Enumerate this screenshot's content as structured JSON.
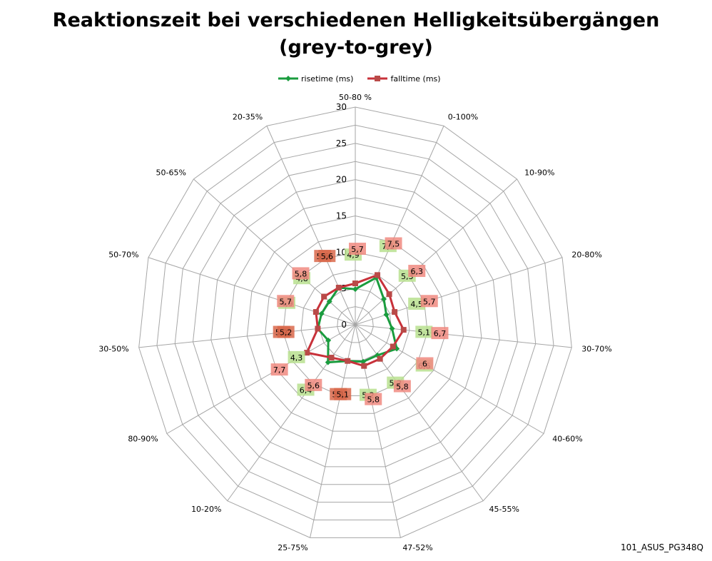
{
  "title_line1": "Reaktionszeit bei verschiedenen Helligkeitsübergängen",
  "title_line2": "(grey-to-grey)",
  "watermark": "101_ASUS_PG348Q",
  "colors": {
    "rise": "#1a9c3e",
    "fall": "#c8313a",
    "rise_label_bg": "#b9e08f",
    "fall_label_bg": "#f08a80",
    "overlap_label_bg": "#d9694b",
    "grid": "#a6a6a6"
  },
  "chart_data": {
    "type": "radar",
    "title": "Reaktionszeit bei verschiedenen Helligkeitsübergängen (grey-to-grey)",
    "categories": [
      "50-80 %",
      "0-100%",
      "10-90%",
      "20-80%",
      "30-70%",
      "40-60%",
      "45-55%",
      "47-52%",
      "25-75%",
      "10-20%",
      "80-90%",
      "30-50%",
      "50-70%",
      "50-65%",
      "20-35%"
    ],
    "series": [
      {
        "name": "risetime (ms)",
        "values": [
          4.9,
          7.1,
          5.3,
          4.5,
          5.1,
          6.6,
          5.2,
          5.2,
          5.1,
          6.4,
          4.3,
          5.2,
          4.9,
          4.8,
          5.6
        ],
        "labels": [
          "4,9",
          "7,1",
          "5,3",
          "4,5",
          "5,1",
          "6,6",
          "5,2",
          "5,2",
          "5,1",
          "6,4",
          "4,3",
          "5,2",
          "4,9",
          "4,8",
          "5,6"
        ]
      },
      {
        "name": "falltime (ms)",
        "values": [
          5.7,
          7.5,
          6.3,
          5.7,
          6.7,
          6.0,
          5.8,
          5.8,
          5.1,
          5.6,
          7.7,
          5.2,
          5.7,
          5.8,
          5.6
        ],
        "labels": [
          "5,7",
          "7,5",
          "6,3",
          "5,7",
          "6,7",
          "6",
          "5,8",
          "5,8",
          "5,1",
          "5,6",
          "7,7",
          "5,2",
          "5,7",
          "5,8",
          "5,6"
        ]
      }
    ],
    "r_ticks": [
      "0",
      "5",
      "10",
      "15",
      "20",
      "25",
      "30"
    ],
    "rlim": [
      0,
      30
    ],
    "legend_position": "top",
    "grid": true
  }
}
